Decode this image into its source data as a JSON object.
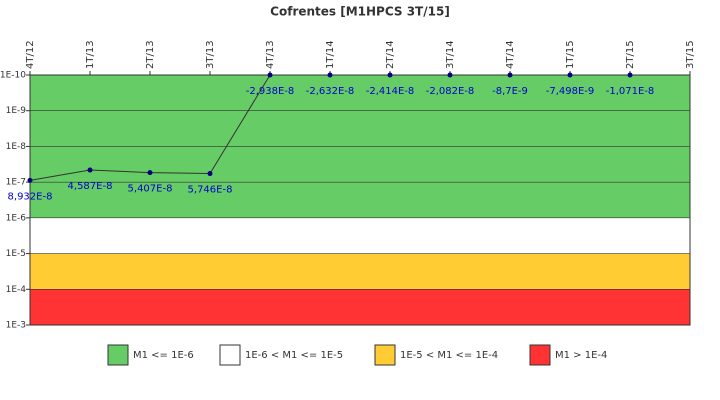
{
  "chart_data": {
    "type": "line",
    "title": "Cofrentes [M1HPCS 3T/15]",
    "categories": [
      "4T/12",
      "1T/13",
      "2T/13",
      "3T/13",
      "4T/13",
      "1T/14",
      "2T/14",
      "3T/14",
      "4T/14",
      "1T/15",
      "2T/15",
      "3T/15"
    ],
    "series": [
      {
        "color": "#333333",
        "values": [
          8.932e-08,
          4.587e-08,
          5.407e-08,
          5.746e-08,
          -2.938e-08,
          -2.632e-08,
          -2.414e-08,
          -2.082e-08,
          -8.7e-09,
          -7.498e-09,
          -1.071e-08,
          null
        ],
        "value_labels": [
          "8,932E-8",
          "4,587E-8",
          "5,407E-8",
          "5,746E-8",
          "-2,938E-8",
          "-2,632E-8",
          "-2,414E-8",
          "-2,082E-8",
          "-8,7E-9",
          "-7,498E-9",
          "-1,071E-8",
          null
        ]
      }
    ],
    "ylim": [
      1e-10,
      0.001
    ],
    "log_scale": true,
    "y_reversed": true,
    "yticks": [
      {
        "value": 1e-10,
        "label": "1E-10"
      },
      {
        "value": 1e-09,
        "label": "1E-9"
      },
      {
        "value": 1e-08,
        "label": "1E-8"
      },
      {
        "value": 1e-07,
        "label": "1E-7"
      },
      {
        "value": 1e-06,
        "label": "1E-6"
      },
      {
        "value": 1e-05,
        "label": "1E-5"
      },
      {
        "value": 0.0001,
        "label": "1E-4"
      },
      {
        "value": 0.001,
        "label": "1E-3"
      }
    ],
    "bands": [
      {
        "name": "M1 <= 1E-6",
        "color": "#66cc66",
        "from": 1e-10,
        "to": 1e-06
      },
      {
        "name": "1E-6 < M1 <= 1E-5",
        "color": "#ffffff",
        "from": 1e-06,
        "to": 1e-05
      },
      {
        "name": "1E-5 < M1 <= 1E-4",
        "color": "#ffcc33",
        "from": 1e-05,
        "to": 0.0001
      },
      {
        "name": "M1 > 1E-4",
        "color": "#ff3333",
        "from": 0.0001,
        "to": 0.001
      }
    ]
  }
}
